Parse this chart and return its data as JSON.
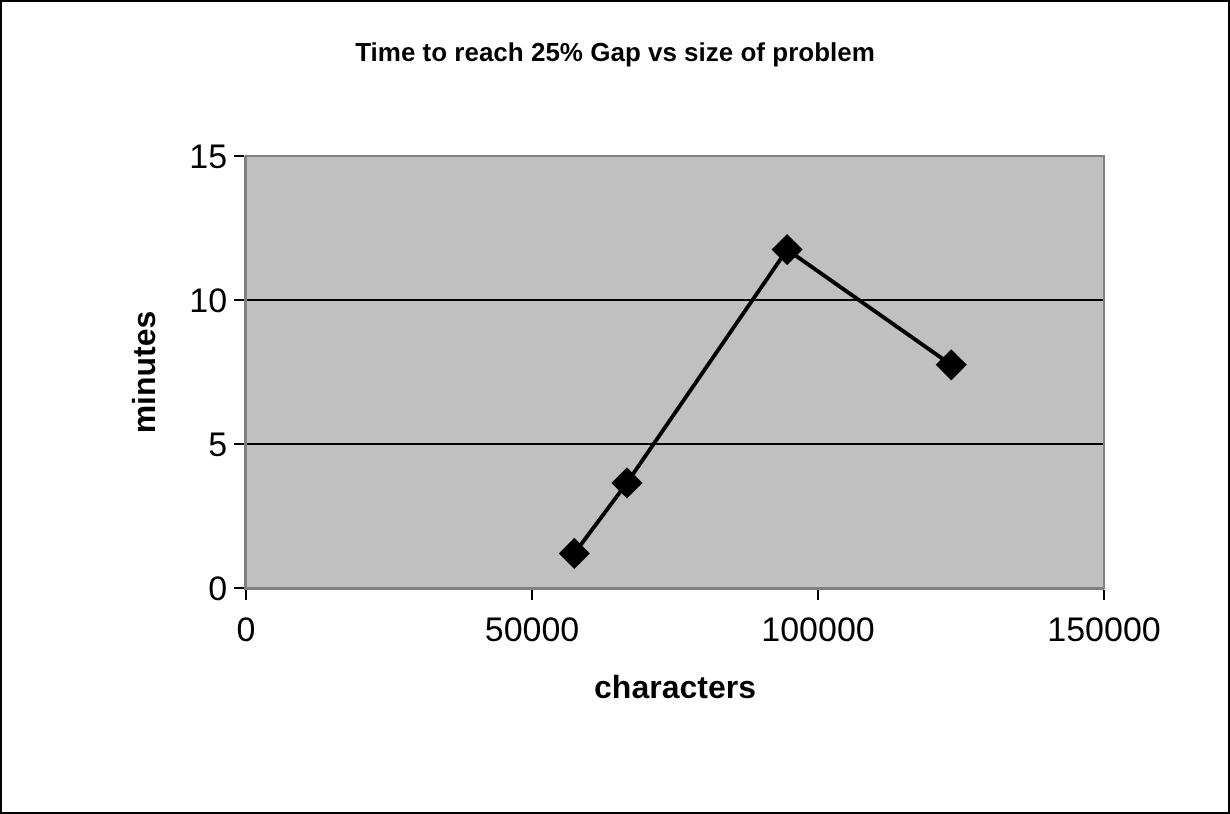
{
  "chart_data": {
    "type": "line",
    "title": "Time to reach 25% Gap vs size of problem",
    "xlabel": "characters",
    "ylabel": "minutes",
    "x": [
      57400,
      66600,
      94600,
      123300
    ],
    "series": [
      {
        "color": "#000000",
        "values": [
          1.2,
          3.65,
          11.75,
          7.75
        ]
      }
    ],
    "xlim": [
      0,
      150000
    ],
    "xticks": [
      0,
      50000,
      100000,
      150000
    ],
    "ylim": [
      0,
      15
    ],
    "yticks": [
      0,
      5,
      10,
      15
    ],
    "grid": "y",
    "marker": "diamond",
    "line_style": "solid"
  }
}
